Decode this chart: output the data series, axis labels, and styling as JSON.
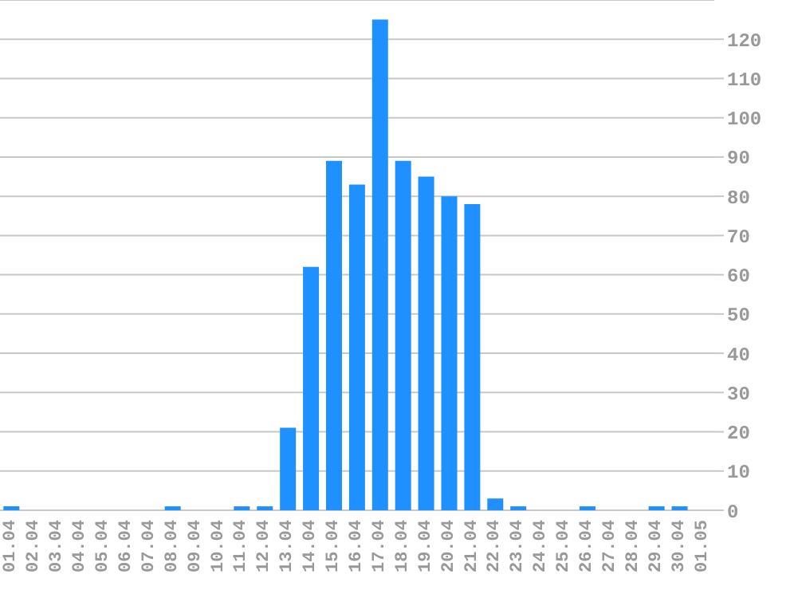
{
  "chart_data": {
    "type": "bar",
    "categories": [
      "01.04",
      "02.04",
      "03.04",
      "04.04",
      "05.04",
      "06.04",
      "07.04",
      "08.04",
      "09.04",
      "10.04",
      "11.04",
      "12.04",
      "13.04",
      "14.04",
      "15.04",
      "16.04",
      "17.04",
      "18.04",
      "19.04",
      "20.04",
      "21.04",
      "22.04",
      "23.04",
      "24.04",
      "25.04",
      "26.04",
      "27.04",
      "28.04",
      "29.04",
      "30.04",
      "01.05"
    ],
    "values": [
      1,
      0,
      0,
      0,
      0,
      0,
      0,
      1,
      0,
      0,
      1,
      1,
      21,
      62,
      89,
      83,
      125,
      89,
      85,
      80,
      78,
      3,
      1,
      0,
      0,
      1,
      0,
      0,
      1,
      1,
      0
    ],
    "color": "#1e90ff",
    "ylim": [
      0,
      130
    ],
    "yticks": [
      0,
      10,
      20,
      30,
      40,
      50,
      60,
      70,
      80,
      90,
      100,
      110,
      120
    ],
    "grid": "y",
    "legend": false
  }
}
